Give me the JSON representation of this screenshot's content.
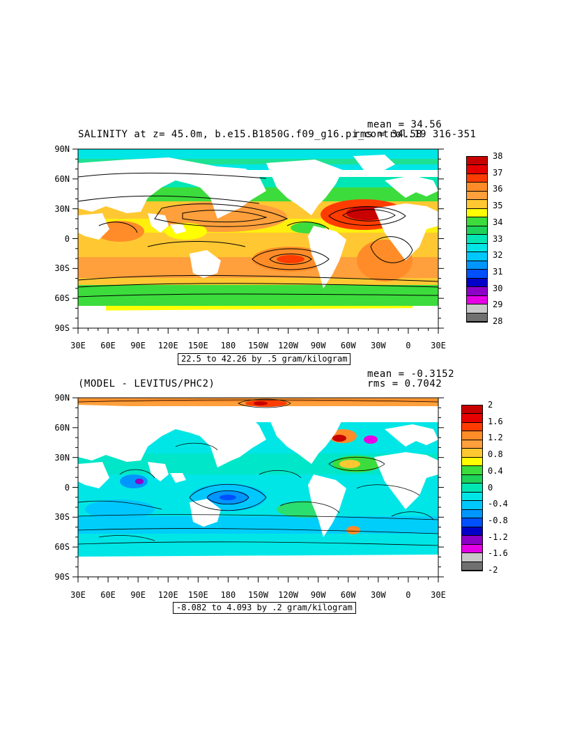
{
  "panel_top": {
    "title": "SALINITY at z=  45.0m, b.e15.B1850G.f09_g16.pi_control.19 316-351",
    "mean_text": "mean = 34.56",
    "rms_text": "rms = 34.58",
    "range_text": "22.5 to 42.26 by .5 gram/kilogram",
    "x_ticks": [
      "30E",
      "60E",
      "90E",
      "120E",
      "150E",
      "180",
      "150W",
      "120W",
      "90W",
      "60W",
      "30W",
      "0",
      "30E"
    ],
    "y_ticks": [
      "90N",
      "60N",
      "30N",
      "0",
      "30S",
      "60S",
      "90S"
    ],
    "colorbar_labels": [
      "38",
      "37",
      "36",
      "35",
      "34",
      "33",
      "32",
      "31",
      "30",
      "29",
      "28"
    ],
    "colors": [
      "#c80000",
      "#e60000",
      "#ff3c00",
      "#ff8c28",
      "#ffa03c",
      "#ffc832",
      "#ffff00",
      "#3cdc3c",
      "#1ed25a",
      "#00e6b4",
      "#00e6e6",
      "#00c8ff",
      "#0096ff",
      "#0050ff",
      "#0000c8",
      "#8c00c8",
      "#e600e6",
      "#c8c8c8",
      "#707070"
    ]
  },
  "panel_bottom": {
    "title": "(MODEL - LEVITUS/PHC2)",
    "mean_text": "mean = -0.3152",
    "rms_text": "rms = 0.7042",
    "range_text": "-8.082 to 4.093 by .2 gram/kilogram",
    "x_ticks": [
      "30E",
      "60E",
      "90E",
      "120E",
      "150E",
      "180",
      "150W",
      "120W",
      "90W",
      "60W",
      "30W",
      "0",
      "30E"
    ],
    "y_ticks": [
      "90N",
      "60N",
      "30N",
      "0",
      "30S",
      "60S",
      "90S"
    ],
    "colorbar_labels": [
      "2",
      "1.6",
      "1.2",
      "0.8",
      "0.4",
      "0",
      "-0.4",
      "-0.8",
      "-1.2",
      "-1.6",
      "-2"
    ],
    "colors": [
      "#c80000",
      "#e60000",
      "#ff3c00",
      "#ff8c28",
      "#ffa03c",
      "#ffc832",
      "#ffff00",
      "#3cdc3c",
      "#1ed25a",
      "#00e6b4",
      "#00e6e6",
      "#00c8ff",
      "#0096ff",
      "#0050ff",
      "#0000c8",
      "#8c00c8",
      "#e600e6",
      "#c8c8c8",
      "#707070"
    ]
  }
}
